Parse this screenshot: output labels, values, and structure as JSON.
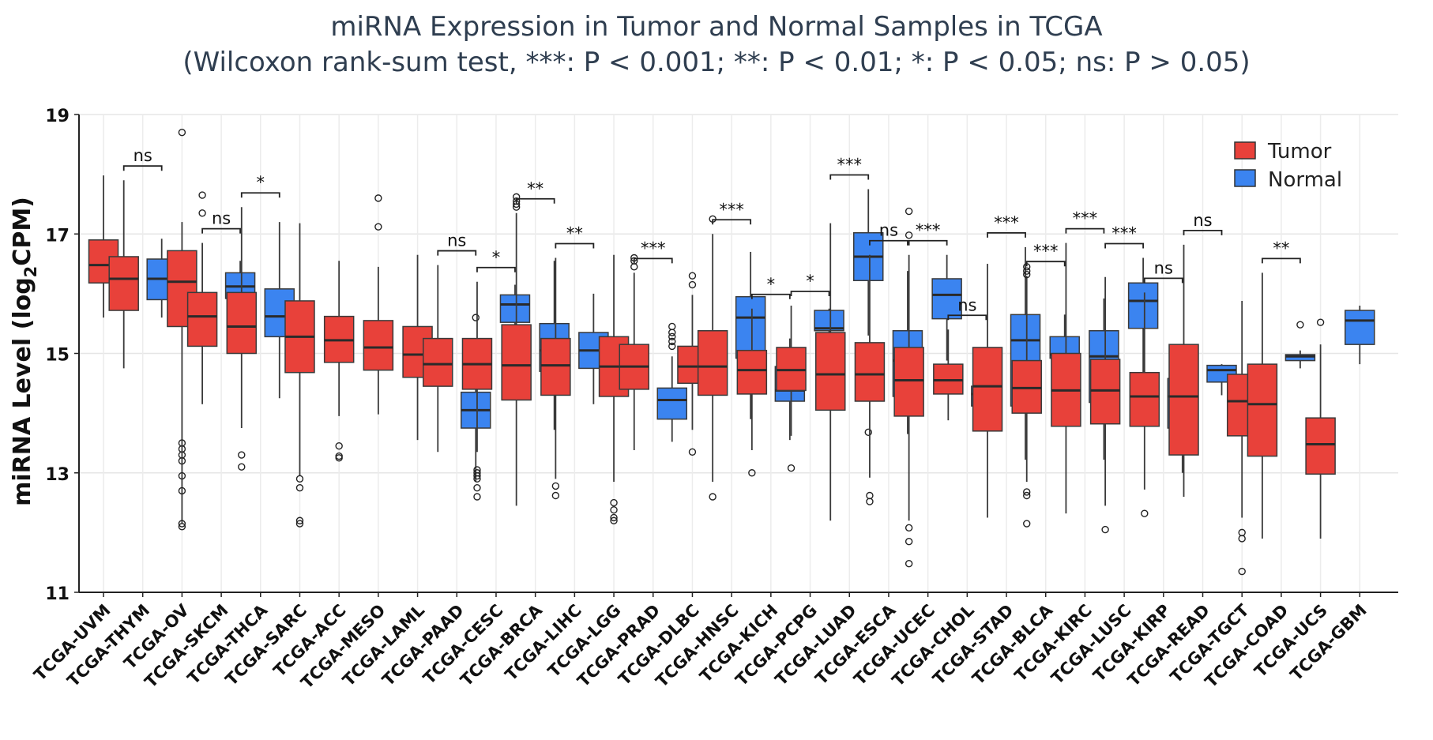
{
  "chart_data": {
    "type": "box",
    "title": "miRNA Expression in Tumor and Normal Samples in TCGA",
    "subtitle": "(Wilcoxon rank-sum test, ***: P < 0.001; **: P < 0.01; *: P < 0.05; ns: P > 0.05)",
    "xlabel": "",
    "ylabel": "miRNA Level (log₂CPM)",
    "ylabel_main": "miRNA Level (log",
    "ylabel_sub": "2",
    "ylabel_end": "CPM)",
    "ylim": [
      11,
      19
    ],
    "yticks": [
      11,
      13,
      15,
      17,
      19
    ],
    "grid": true,
    "legend_position": "top-right",
    "series": [
      {
        "name": "Tumor",
        "color": "#e8413a"
      },
      {
        "name": "Normal",
        "color": "#3b84f0"
      }
    ],
    "categories": [
      {
        "label": "TCGA-UVM",
        "tumor": {
          "whislo": 15.6,
          "q1": 16.18,
          "med": 16.48,
          "q3": 16.9,
          "whishi": 17.98,
          "fliers": []
        },
        "normal": null,
        "sig": null
      },
      {
        "label": "TCGA-THYM",
        "tumor": {
          "whislo": 14.75,
          "q1": 15.72,
          "med": 16.25,
          "q3": 16.62,
          "whishi": 17.9,
          "fliers": []
        },
        "normal": {
          "whislo": 15.6,
          "q1": 15.9,
          "med": 16.25,
          "q3": 16.58,
          "whishi": 16.92,
          "fliers": []
        },
        "sig": "ns"
      },
      {
        "label": "TCGA-OV",
        "tumor": {
          "whislo": 12.15,
          "q1": 15.45,
          "med": 16.2,
          "q3": 16.72,
          "whishi": 17.2,
          "fliers": [
            18.7,
            13.5,
            13.4,
            13.3,
            13.2,
            12.95,
            12.7,
            12.15,
            12.1
          ]
        },
        "normal": null,
        "sig": null
      },
      {
        "label": "TCGA-SKCM",
        "tumor": {
          "whislo": 14.15,
          "q1": 15.12,
          "med": 15.62,
          "q3": 16.02,
          "whishi": 16.85,
          "fliers": [
            17.65,
            17.35
          ]
        },
        "normal": {
          "whislo": 15.7,
          "q1": 15.92,
          "med": 16.12,
          "q3": 16.35,
          "whishi": 16.55,
          "fliers": []
        },
        "sig": "ns"
      },
      {
        "label": "TCGA-THCA",
        "tumor": {
          "whislo": 13.75,
          "q1": 15.0,
          "med": 15.45,
          "q3": 16.02,
          "whishi": 17.45,
          "fliers": [
            13.3,
            13.1
          ]
        },
        "normal": {
          "whislo": 14.25,
          "q1": 15.28,
          "med": 15.62,
          "q3": 16.08,
          "whishi": 17.2,
          "fliers": []
        },
        "sig": "*"
      },
      {
        "label": "TCGA-SARC",
        "tumor": {
          "whislo": 12.95,
          "q1": 14.68,
          "med": 15.28,
          "q3": 15.88,
          "whishi": 17.18,
          "fliers": [
            12.9,
            12.75,
            12.2,
            12.15
          ]
        },
        "normal": null,
        "sig": null
      },
      {
        "label": "TCGA-ACC",
        "tumor": {
          "whislo": 13.95,
          "q1": 14.85,
          "med": 15.22,
          "q3": 15.62,
          "whishi": 16.55,
          "fliers": [
            13.45,
            13.28,
            13.25
          ]
        },
        "normal": null,
        "sig": null
      },
      {
        "label": "TCGA-MESO",
        "tumor": {
          "whislo": 13.98,
          "q1": 14.72,
          "med": 15.1,
          "q3": 15.55,
          "whishi": 16.45,
          "fliers": [
            17.6,
            17.12
          ]
        },
        "normal": null,
        "sig": null
      },
      {
        "label": "TCGA-LAML",
        "tumor": {
          "whislo": 13.55,
          "q1": 14.6,
          "med": 14.98,
          "q3": 15.45,
          "whishi": 16.65,
          "fliers": []
        },
        "normal": null,
        "sig": null
      },
      {
        "label": "TCGA-PAAD",
        "tumor": {
          "whislo": 13.35,
          "q1": 14.45,
          "med": 14.82,
          "q3": 15.25,
          "whishi": 16.48,
          "fliers": []
        },
        "normal": {
          "whislo": 12.85,
          "q1": 13.75,
          "med": 14.05,
          "q3": 14.35,
          "whishi": 14.9,
          "fliers": [
            15.6
          ]
        },
        "sig": "ns"
      },
      {
        "label": "TCGA-CESC",
        "tumor": {
          "whislo": 13.35,
          "q1": 14.4,
          "med": 14.82,
          "q3": 15.25,
          "whishi": 16.2,
          "fliers": [
            13.05,
            13.0,
            12.95,
            12.9,
            12.75,
            12.6
          ]
        },
        "normal": {
          "whislo": 15.2,
          "q1": 15.52,
          "med": 15.82,
          "q3": 15.98,
          "whishi": 16.15,
          "fliers": []
        },
        "sig": "*"
      },
      {
        "label": "TCGA-BRCA",
        "tumor": {
          "whislo": 12.45,
          "q1": 14.22,
          "med": 14.8,
          "q3": 15.48,
          "whishi": 17.35,
          "fliers": [
            17.62,
            17.55,
            17.5,
            17.45
          ]
        },
        "normal": {
          "whislo": 13.72,
          "q1": 14.7,
          "med": 15.05,
          "q3": 15.5,
          "whishi": 16.55,
          "fliers": []
        },
        "sig": "**"
      },
      {
        "label": "TCGA-LIHC",
        "tumor": {
          "whislo": 12.9,
          "q1": 14.3,
          "med": 14.8,
          "q3": 15.25,
          "whishi": 16.6,
          "fliers": [
            12.78,
            12.62
          ]
        },
        "normal": {
          "whislo": 14.15,
          "q1": 14.75,
          "med": 15.05,
          "q3": 15.35,
          "whishi": 16.0,
          "fliers": []
        },
        "sig": "**"
      },
      {
        "label": "TCGA-LGG",
        "tumor": {
          "whislo": 12.85,
          "q1": 14.28,
          "med": 14.78,
          "q3": 15.28,
          "whishi": 16.65,
          "fliers": [
            12.5,
            12.38,
            12.25,
            12.2
          ]
        },
        "normal": null,
        "sig": null
      },
      {
        "label": "TCGA-PRAD",
        "tumor": {
          "whislo": 13.38,
          "q1": 14.4,
          "med": 14.78,
          "q3": 15.15,
          "whishi": 16.35,
          "fliers": [
            16.6,
            16.55,
            16.45
          ]
        },
        "normal": {
          "whislo": 13.52,
          "q1": 13.9,
          "med": 14.22,
          "q3": 14.42,
          "whishi": 14.95,
          "fliers": [
            15.45,
            15.35,
            15.28,
            15.2,
            15.12
          ]
        },
        "sig": "***"
      },
      {
        "label": "TCGA-DLBC",
        "tumor": {
          "whislo": 13.72,
          "q1": 14.5,
          "med": 14.78,
          "q3": 15.12,
          "whishi": 15.98,
          "fliers": [
            16.3,
            16.15,
            13.35
          ]
        },
        "normal": null,
        "sig": null
      },
      {
        "label": "TCGA-HNSC",
        "tumor": {
          "whislo": 12.85,
          "q1": 14.3,
          "med": 14.78,
          "q3": 15.38,
          "whishi": 17.0,
          "fliers": [
            17.25,
            12.6
          ]
        },
        "normal": {
          "whislo": 13.9,
          "q1": 14.92,
          "med": 15.6,
          "q3": 15.95,
          "whishi": 16.7,
          "fliers": []
        },
        "sig": "***"
      },
      {
        "label": "TCGA-KICH",
        "tumor": {
          "whislo": 13.38,
          "q1": 14.32,
          "med": 14.72,
          "q3": 15.05,
          "whishi": 15.75,
          "fliers": [
            13.0
          ]
        },
        "normal": {
          "whislo": 13.55,
          "q1": 14.2,
          "med": 14.38,
          "q3": 14.78,
          "whishi": 15.25,
          "fliers": []
        },
        "sig": "*"
      },
      {
        "label": "TCGA-PCPG",
        "tumor": {
          "whislo": 13.62,
          "q1": 14.38,
          "med": 14.72,
          "q3": 15.1,
          "whishi": 15.8,
          "fliers": [
            13.08
          ]
        },
        "normal": {
          "whislo": 15.35,
          "q1": 15.38,
          "med": 15.42,
          "q3": 15.72,
          "whishi": 15.75,
          "fliers": []
        },
        "sig": "*"
      },
      {
        "label": "TCGA-LUAD",
        "tumor": {
          "whislo": 12.2,
          "q1": 14.05,
          "med": 14.65,
          "q3": 15.35,
          "whishi": 17.18,
          "fliers": []
        },
        "normal": {
          "whislo": 15.3,
          "q1": 16.22,
          "med": 16.62,
          "q3": 17.02,
          "whishi": 17.75,
          "fliers": [
            14.75,
            14.48,
            14.38,
            13.68
          ]
        },
        "sig": "***"
      },
      {
        "label": "TCGA-ESCA",
        "tumor": {
          "whislo": 12.92,
          "q1": 14.2,
          "med": 14.65,
          "q3": 15.18,
          "whishi": 16.65,
          "fliers": [
            12.62,
            12.52
          ]
        },
        "normal": {
          "whislo": 13.65,
          "q1": 14.28,
          "med": 14.88,
          "q3": 15.38,
          "whishi": 16.38,
          "fliers": []
        },
        "sig": "ns"
      },
      {
        "label": "TCGA-UCEC",
        "tumor": {
          "whislo": 12.2,
          "q1": 13.95,
          "med": 14.55,
          "q3": 15.1,
          "whishi": 16.65,
          "fliers": [
            17.38,
            16.98,
            12.08,
            11.85,
            11.48
          ]
        },
        "normal": {
          "whislo": 14.88,
          "q1": 15.58,
          "med": 15.98,
          "q3": 16.25,
          "whishi": 16.65,
          "fliers": []
        },
        "sig": "***"
      },
      {
        "label": "TCGA-CHOL",
        "tumor": {
          "whislo": 13.88,
          "q1": 14.32,
          "med": 14.55,
          "q3": 14.82,
          "whishi": 15.4,
          "fliers": []
        },
        "normal": {
          "whislo": 13.92,
          "q1": 14.12,
          "med": 14.32,
          "q3": 14.45,
          "whishi": 14.78,
          "fliers": []
        },
        "sig": "ns"
      },
      {
        "label": "TCGA-STAD",
        "tumor": {
          "whislo": 12.25,
          "q1": 13.7,
          "med": 14.45,
          "q3": 15.1,
          "whishi": 16.5,
          "fliers": []
        },
        "normal": {
          "whislo": 13.22,
          "q1": 14.12,
          "med": 15.22,
          "q3": 15.65,
          "whishi": 16.78,
          "fliers": []
        },
        "sig": "***"
      },
      {
        "label": "TCGA-BLCA",
        "tumor": {
          "whislo": 12.85,
          "q1": 14.0,
          "med": 14.42,
          "q3": 14.88,
          "whishi": 16.3,
          "fliers": [
            16.45,
            16.38,
            16.32,
            12.68,
            12.62,
            12.15
          ]
        },
        "normal": {
          "whislo": 14.25,
          "q1": 14.92,
          "med": 14.98,
          "q3": 15.28,
          "whishi": 15.65,
          "fliers": [
            14.18,
            13.88
          ]
        },
        "sig": "***"
      },
      {
        "label": "TCGA-KIRC",
        "tumor": {
          "whislo": 12.32,
          "q1": 13.78,
          "med": 14.38,
          "q3": 15.0,
          "whishi": 16.85,
          "fliers": []
        },
        "normal": {
          "whislo": 13.22,
          "q1": 14.18,
          "med": 14.95,
          "q3": 15.38,
          "whishi": 15.92,
          "fliers": []
        },
        "sig": "***"
      },
      {
        "label": "TCGA-LUSC",
        "tumor": {
          "whislo": 12.45,
          "q1": 13.82,
          "med": 14.38,
          "q3": 14.9,
          "whishi": 16.28,
          "fliers": [
            12.05
          ]
        },
        "normal": {
          "whislo": 14.62,
          "q1": 15.42,
          "med": 15.88,
          "q3": 16.18,
          "whishi": 16.6,
          "fliers": [
            14.3
          ]
        },
        "sig": "***"
      },
      {
        "label": "TCGA-KIRP",
        "tumor": {
          "whislo": 12.72,
          "q1": 13.78,
          "med": 14.28,
          "q3": 14.68,
          "whishi": 16.02,
          "fliers": [
            12.32
          ]
        },
        "normal": {
          "whislo": 13.0,
          "q1": 13.75,
          "med": 14.28,
          "q3": 14.58,
          "whishi": 14.95,
          "fliers": []
        },
        "sig": "ns"
      },
      {
        "label": "TCGA-READ",
        "tumor": {
          "whislo": 12.6,
          "q1": 13.3,
          "med": 14.28,
          "q3": 15.15,
          "whishi": 16.82,
          "fliers": []
        },
        "normal": {
          "whislo": 14.3,
          "q1": 14.52,
          "med": 14.72,
          "q3": 14.8,
          "whishi": 14.82,
          "fliers": []
        },
        "sig": "ns"
      },
      {
        "label": "TCGA-TGCT",
        "tumor": {
          "whislo": 12.25,
          "q1": 13.62,
          "med": 14.2,
          "q3": 14.65,
          "whishi": 15.88,
          "fliers": [
            12.0,
            11.9,
            11.35
          ]
        },
        "normal": null,
        "sig": null
      },
      {
        "label": "TCGA-COAD",
        "tumor": {
          "whislo": 11.9,
          "q1": 13.28,
          "med": 14.15,
          "q3": 14.82,
          "whishi": 16.35,
          "fliers": []
        },
        "normal": {
          "whislo": 14.75,
          "q1": 14.88,
          "med": 14.95,
          "q3": 14.98,
          "whishi": 15.05,
          "fliers": [
            15.48
          ]
        },
        "sig": "**"
      },
      {
        "label": "TCGA-UCS",
        "tumor": {
          "whislo": 11.9,
          "q1": 12.98,
          "med": 13.48,
          "q3": 13.92,
          "whishi": 15.15,
          "fliers": [
            15.52
          ]
        },
        "normal": null,
        "sig": null
      },
      {
        "label": "TCGA-GBM",
        "tumor": null,
        "normal": {
          "whislo": 14.82,
          "q1": 15.15,
          "med": 15.55,
          "q3": 15.72,
          "whishi": 15.8,
          "fliers": []
        },
        "sig": null
      }
    ]
  }
}
